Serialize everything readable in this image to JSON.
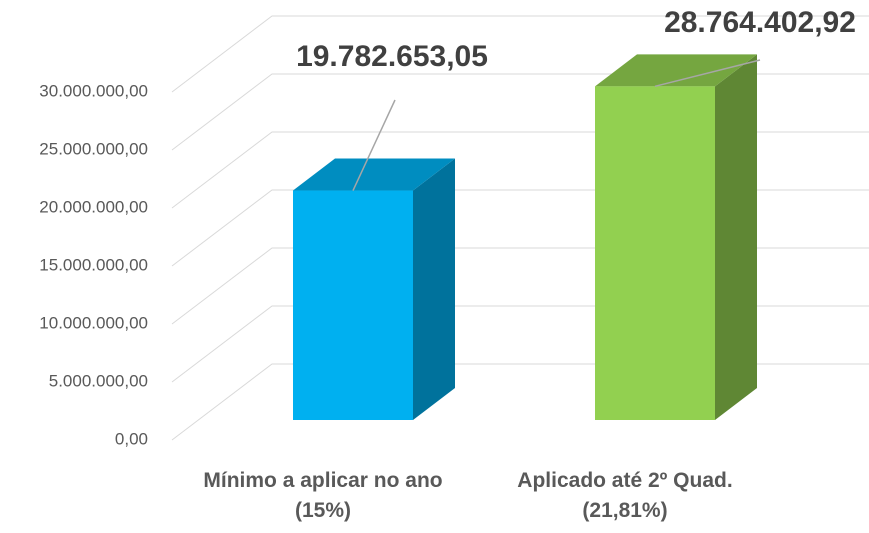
{
  "chart_data": {
    "type": "bar3d",
    "categories": [
      "Mínimo a aplicar no ano (15%)",
      "Aplicado até 2º Quad. (21,81%)"
    ],
    "values": [
      19782653.05,
      28764402.92
    ],
    "value_labels": [
      "19.782.653,05",
      "28.764.402,92"
    ],
    "colors": [
      "#00b0f0",
      "#92d050"
    ],
    "ylim": [
      0,
      30000000
    ],
    "yticks": [
      {
        "value": 0,
        "label": "0,00"
      },
      {
        "value": 5000000,
        "label": "5.000.000,00"
      },
      {
        "value": 10000000,
        "label": "10.000.000,00"
      },
      {
        "value": 15000000,
        "label": "15.000.000,00"
      },
      {
        "value": 20000000,
        "label": "20.000.000,00"
      },
      {
        "value": 25000000,
        "label": "25.000.000,00"
      },
      {
        "value": 30000000,
        "label": "30.000.000,00"
      }
    ],
    "grid": true
  }
}
